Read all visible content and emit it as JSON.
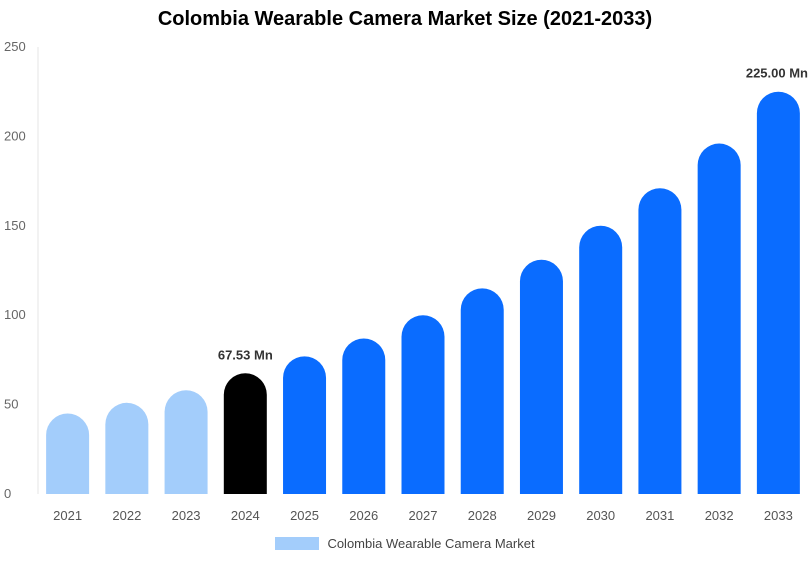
{
  "chart_data": {
    "type": "bar",
    "title": "Colombia Wearable Camera Market Size (2021-2033)",
    "categories": [
      "2021",
      "2022",
      "2023",
      "2024",
      "2025",
      "2026",
      "2027",
      "2028",
      "2029",
      "2030",
      "2031",
      "2032",
      "2033"
    ],
    "series": [
      {
        "name": "Colombia Wearable Camera Market",
        "values": [
          45,
          51,
          58,
          67.53,
          77,
          87,
          100,
          115,
          131,
          150,
          171,
          196,
          225
        ]
      }
    ],
    "ylim": [
      0,
      250
    ],
    "yticks": [
      0,
      50,
      100,
      150,
      200,
      250
    ],
    "data_labels": [
      {
        "index": 3,
        "text": "67.53 Mn"
      },
      {
        "index": 12,
        "text": "225.00 Mn"
      }
    ],
    "colors": {
      "historical": "#a3cdfb",
      "base_year": "#000000",
      "forecast": "#0a6cff",
      "legend": "#a3cdfb"
    },
    "historical_indices": [
      0,
      1,
      2
    ],
    "base_year_index": 3,
    "legend_position": "bottom",
    "grid": false
  }
}
